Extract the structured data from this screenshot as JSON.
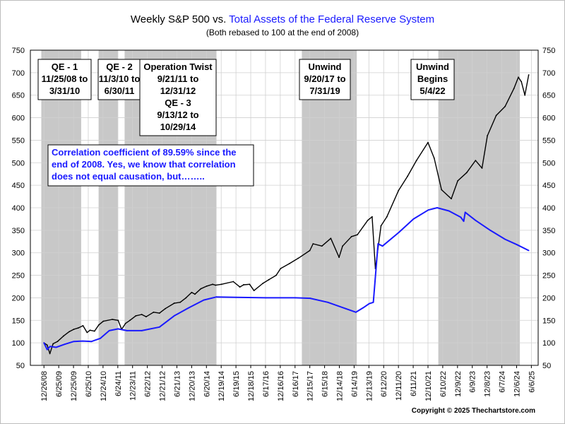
{
  "chart_data": {
    "type": "line",
    "title_part1": "Weekly S&P 500 vs. ",
    "title_part2": "Total Assets of the Federal Reserve System",
    "subtitle": "(Both rebased to 100 at the end of 2008)",
    "colors": {
      "sp500": "#000000",
      "fed": "#1a1aff",
      "shade": "#c8c8c8",
      "title_blue": "#1a1aff"
    },
    "ylim": [
      50,
      750
    ],
    "y_ticks": [
      50,
      100,
      150,
      200,
      250,
      300,
      350,
      400,
      450,
      500,
      550,
      600,
      650,
      700,
      750
    ],
    "x_tick_labels": [
      "12/26/08",
      "6/25/09",
      "12/25/09",
      "6/25/10",
      "12/24/10",
      "6/24/11",
      "12/23/11",
      "6/22/12",
      "12/21/12",
      "6/21/13",
      "12/20/13",
      "6/20/14",
      "12/19/14",
      "6/19/15",
      "12/18/15",
      "6/17/16",
      "12/16/16",
      "6/16/17",
      "12/15/17",
      "6/15/18",
      "12/14/18",
      "6/14/19",
      "12/13/19",
      "6/12/20",
      "12/11/20",
      "6/11/21",
      "12/10/21",
      "6/10/22",
      "12/9/22",
      "6/9/23",
      "12/8/23",
      "6/7/24",
      "12/6/24",
      "6/6/25"
    ],
    "grid": true,
    "shaded_periods": [
      {
        "start": 2008.9,
        "end": 2010.25
      },
      {
        "start": 2010.84,
        "end": 2011.5
      },
      {
        "start": 2011.72,
        "end": 2014.83
      },
      {
        "start": 2017.72,
        "end": 2019.58
      },
      {
        "start": 2022.34,
        "end": 2025.1
      }
    ],
    "series": [
      {
        "key": "sp500",
        "x": [
          2008.99,
          2009.1,
          2009.19,
          2009.3,
          2009.45,
          2009.65,
          2009.85,
          2010.0,
          2010.15,
          2010.31,
          2010.45,
          2010.55,
          2010.7,
          2010.85,
          2011.0,
          2011.3,
          2011.5,
          2011.62,
          2011.75,
          2011.9,
          2012.1,
          2012.3,
          2012.45,
          2012.7,
          2012.9,
          2013.1,
          2013.4,
          2013.6,
          2013.8,
          2013.99,
          2014.1,
          2014.3,
          2014.5,
          2014.7,
          2014.8,
          2015.0,
          2015.4,
          2015.62,
          2015.75,
          2015.95,
          2016.1,
          2016.4,
          2016.6,
          2016.85,
          2017.0,
          2017.3,
          2017.6,
          2017.99,
          2018.1,
          2018.4,
          2018.7,
          2018.98,
          2019.1,
          2019.4,
          2019.6,
          2019.95,
          2020.1,
          2020.21,
          2020.4,
          2020.6,
          2020.99,
          2021.3,
          2021.6,
          2021.99,
          2022.2,
          2022.45,
          2022.78,
          2023.0,
          2023.3,
          2023.6,
          2023.82,
          2024.0,
          2024.3,
          2024.6,
          2024.9,
          2025.05,
          2025.15,
          2025.27,
          2025.4
        ],
        "values": [
          100,
          95,
          76,
          98,
          103,
          115,
          125,
          130,
          133,
          138,
          123,
          128,
          126,
          140,
          148,
          152,
          150,
          130,
          143,
          150,
          160,
          163,
          158,
          168,
          166,
          176,
          188,
          190,
          200,
          212,
          208,
          220,
          226,
          230,
          228,
          230,
          236,
          224,
          229,
          230,
          216,
          232,
          240,
          250,
          265,
          276,
          288,
          305,
          320,
          315,
          332,
          290,
          315,
          336,
          340,
          372,
          380,
          265,
          360,
          380,
          438,
          470,
          505,
          545,
          510,
          440,
          420,
          460,
          478,
          505,
          488,
          560,
          605,
          625,
          665,
          690,
          680,
          650,
          695
        ],
        "name": ""
      },
      {
        "key": "fed",
        "x": [
          2008.99,
          2009.1,
          2009.2,
          2009.4,
          2009.7,
          2010.0,
          2010.3,
          2010.6,
          2010.9,
          2011.2,
          2011.5,
          2011.8,
          2012.3,
          2012.9,
          2013.4,
          2013.9,
          2014.4,
          2014.83,
          2015.5,
          2016.5,
          2017.5,
          2018.0,
          2018.6,
          2019.2,
          2019.55,
          2019.8,
          2020.0,
          2020.14,
          2020.3,
          2020.45,
          2021.0,
          2021.5,
          2022.0,
          2022.3,
          2022.7,
          2023.1,
          2023.2,
          2023.25,
          2023.6,
          2024.1,
          2024.6,
          2025.0,
          2025.4
        ],
        "values": [
          100,
          85,
          92,
          90,
          97,
          103,
          104,
          103,
          110,
          127,
          131,
          127,
          127,
          135,
          160,
          178,
          195,
          202,
          201,
          200,
          200,
          199,
          190,
          176,
          168,
          178,
          187,
          190,
          320,
          315,
          345,
          375,
          395,
          400,
          393,
          379,
          370,
          390,
          372,
          350,
          330,
          318,
          305
        ],
        "name": ""
      }
    ],
    "annotation_boxes": [
      {
        "id": "qe1",
        "lines": [
          "QE - 1",
          "11/25/08 to",
          "3/31/10"
        ]
      },
      {
        "id": "qe2",
        "lines": [
          "QE - 2",
          "11/3/10 to",
          "6/30/11"
        ]
      },
      {
        "id": "twist",
        "lines": [
          "Operation Twist",
          "9/21/11 to",
          "12/31/12",
          "QE - 3",
          "9/13/12 to",
          "10/29/14"
        ]
      },
      {
        "id": "unwind1",
        "lines": [
          "Unwind",
          "9/20/17 to",
          "7/31/19"
        ]
      },
      {
        "id": "unwind2",
        "lines": [
          "Unwind",
          "Begins",
          "5/4/22"
        ]
      }
    ],
    "correlation_note": [
      "Correlation coefficient of 89.59% since the",
      "end of 2008. Yes, we know that correlation",
      "does not equal causation, but…….."
    ],
    "copyright": "Copyright © 2025 Thechartstore.com"
  }
}
